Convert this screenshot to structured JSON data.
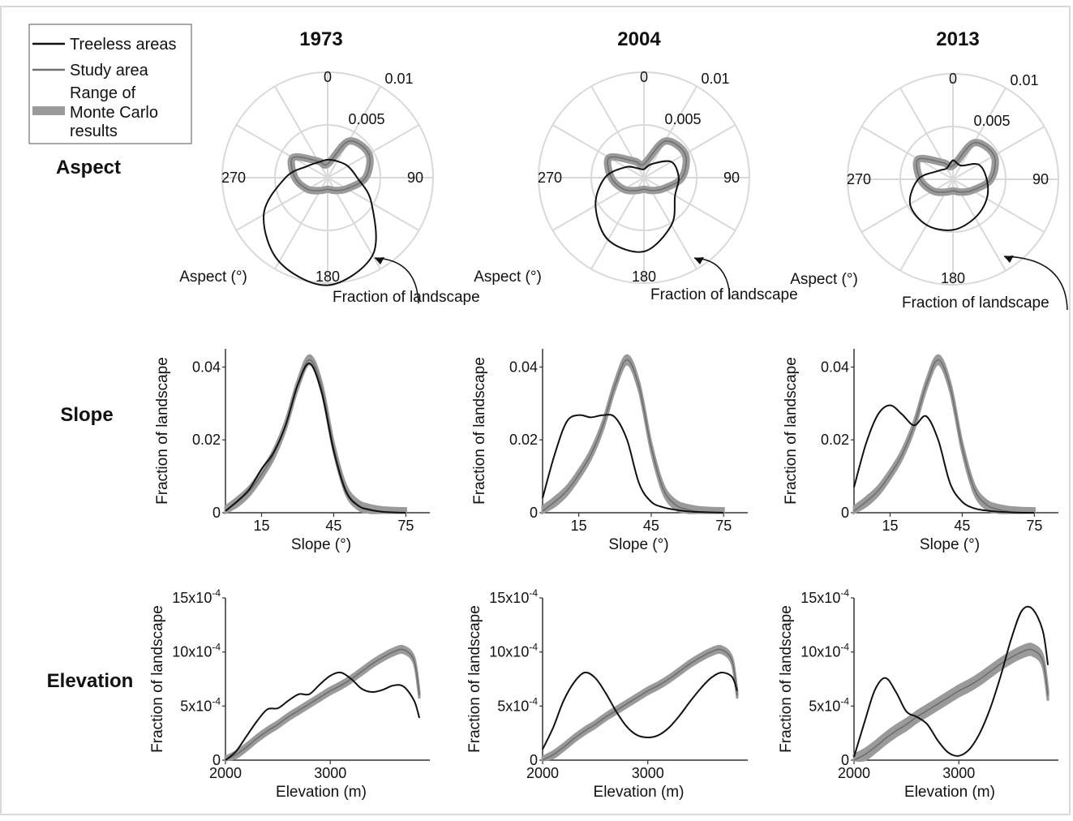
{
  "legend": {
    "items": [
      {
        "label": "Treeless areas",
        "color": "#111111",
        "kind": "line"
      },
      {
        "label": "Study area",
        "color": "#707070",
        "kind": "line"
      },
      {
        "label_lines": [
          "Range of",
          "Monte Carlo",
          "results"
        ],
        "color": "#9a9a9c",
        "kind": "band"
      }
    ]
  },
  "years": [
    "1973",
    "2004",
    "2013"
  ],
  "rows": [
    "Aspect",
    "Slope",
    "Elevation"
  ],
  "colors": {
    "treeless": "#111111",
    "study": "#6e6e6e",
    "band": "#9a9a9c",
    "grid": "#d9d9d9",
    "axis": "#333333"
  },
  "aspect": {
    "angle_ticks": [
      "0",
      "90",
      "180",
      "270"
    ],
    "radial_ticks": [
      "0.005",
      "0.01"
    ],
    "r_max": 0.01,
    "angle_label": "Aspect (°)",
    "radius_label": "Fraction of landscape"
  },
  "slope": {
    "xlabel": "Slope (°)",
    "ylabel": "Fraction of landscape",
    "xticks": [
      "15",
      "45",
      "75"
    ],
    "yticks": [
      "0",
      "0.02",
      "0.04"
    ]
  },
  "elevation": {
    "xlabel": "Elevation (m)",
    "ylabel": "Fraction of landscape",
    "xticks": [
      "2000",
      "3000"
    ],
    "ytick_base": [
      "0",
      "5x10",
      "10x10",
      "15x10"
    ],
    "ytick_exp": [
      "",
      "-4",
      "-4",
      "-4"
    ]
  },
  "chart_data": [
    {
      "type": "line",
      "id": "aspect-1973",
      "title": "1973",
      "polar": true,
      "theta_deg": [
        0,
        30,
        60,
        90,
        120,
        150,
        180,
        210,
        240,
        270,
        300,
        330
      ],
      "series": [
        {
          "name": "Treeless areas",
          "r": [
            0.0017,
            0.0018,
            0.0022,
            0.0028,
            0.0048,
            0.0085,
            0.0102,
            0.0092,
            0.007,
            0.004,
            0.0022,
            0.0017
          ]
        },
        {
          "name": "Study area",
          "r": [
            0.0013,
            0.004,
            0.0045,
            0.0036,
            0.0021,
            0.0014,
            0.0011,
            0.0014,
            0.0022,
            0.0031,
            0.0038,
            0.0018
          ]
        }
      ],
      "band_width": 0.00035
    },
    {
      "type": "line",
      "id": "aspect-2004",
      "title": "2004",
      "polar": true,
      "theta_deg": [
        0,
        30,
        60,
        90,
        120,
        150,
        180,
        210,
        240,
        270,
        300,
        330
      ],
      "series": [
        {
          "name": "Treeless areas",
          "r": [
            0.0008,
            0.0015,
            0.003,
            0.0033,
            0.0034,
            0.0052,
            0.007,
            0.0068,
            0.0053,
            0.0037,
            0.002,
            0.001
          ]
        },
        {
          "name": "Study area",
          "r": [
            0.0013,
            0.004,
            0.0045,
            0.0036,
            0.0021,
            0.0014,
            0.0011,
            0.0014,
            0.0022,
            0.0031,
            0.0038,
            0.0018
          ]
        }
      ],
      "band_width": 0.00035
    },
    {
      "type": "line",
      "id": "aspect-2013",
      "title": "2013",
      "polar": true,
      "theta_deg": [
        0,
        30,
        60,
        90,
        120,
        150,
        180,
        210,
        240,
        270,
        300,
        330
      ],
      "series": [
        {
          "name": "Treeless areas",
          "r": [
            0.0018,
            0.0015,
            0.0028,
            0.0032,
            0.0037,
            0.0042,
            0.0048,
            0.005,
            0.0047,
            0.0033,
            0.0016,
            0.0012
          ]
        },
        {
          "name": "Study area",
          "r": [
            0.0013,
            0.004,
            0.0045,
            0.0036,
            0.0021,
            0.0014,
            0.0011,
            0.0014,
            0.0022,
            0.0031,
            0.0038,
            0.0018
          ]
        }
      ],
      "band_width": 0.00035
    },
    {
      "type": "line",
      "id": "slope-1973",
      "xlim": [
        0,
        85
      ],
      "ylim": [
        0,
        0.045
      ],
      "x": [
        0,
        5,
        10,
        15,
        20,
        25,
        30,
        35,
        40,
        45,
        50,
        55,
        60,
        65,
        70,
        75
      ],
      "series": [
        {
          "name": "Treeless areas",
          "y": [
            0.0005,
            0.0032,
            0.0065,
            0.012,
            0.0165,
            0.024,
            0.035,
            0.041,
            0.033,
            0.017,
            0.006,
            0.002,
            0.0008,
            0.0003,
            0.0001,
            0.0
          ]
        },
        {
          "name": "Study area",
          "y": [
            0.0005,
            0.003,
            0.006,
            0.0105,
            0.016,
            0.024,
            0.035,
            0.042,
            0.0345,
            0.018,
            0.0065,
            0.0022,
            0.0009,
            0.0003,
            0.0001,
            0.0
          ]
        }
      ],
      "band_width": 0.0012
    },
    {
      "type": "line",
      "id": "slope-2004",
      "xlim": [
        0,
        85
      ],
      "ylim": [
        0,
        0.045
      ],
      "x": [
        0,
        5,
        10,
        15,
        20,
        25,
        30,
        35,
        40,
        45,
        50,
        55,
        60,
        65,
        70,
        75
      ],
      "series": [
        {
          "name": "Treeless areas",
          "y": [
            0.004,
            0.016,
            0.025,
            0.0268,
            0.0262,
            0.0268,
            0.0262,
            0.02,
            0.008,
            0.003,
            0.0015,
            0.0008,
            0.0004,
            0.0002,
            0.0001,
            0.0
          ]
        },
        {
          "name": "Study area",
          "y": [
            0.0005,
            0.003,
            0.006,
            0.0105,
            0.016,
            0.024,
            0.035,
            0.042,
            0.0345,
            0.018,
            0.0065,
            0.0022,
            0.0009,
            0.0003,
            0.0001,
            0.0
          ]
        }
      ],
      "band_width": 0.0012
    },
    {
      "type": "line",
      "id": "slope-2013",
      "xlim": [
        0,
        85
      ],
      "ylim": [
        0,
        0.045
      ],
      "x": [
        0,
        5,
        10,
        15,
        20,
        25,
        30,
        35,
        40,
        45,
        50,
        55,
        60,
        65,
        70,
        75
      ],
      "series": [
        {
          "name": "Treeless areas",
          "y": [
            0.007,
            0.019,
            0.027,
            0.0295,
            0.027,
            0.024,
            0.0265,
            0.02,
            0.008,
            0.003,
            0.0012,
            0.0006,
            0.0003,
            0.0001,
            0.0,
            0.0
          ]
        },
        {
          "name": "Study area",
          "y": [
            0.0005,
            0.003,
            0.006,
            0.0105,
            0.016,
            0.024,
            0.035,
            0.042,
            0.0345,
            0.018,
            0.0065,
            0.0022,
            0.0009,
            0.0003,
            0.0001,
            0.0
          ]
        }
      ],
      "band_width": 0.0012
    },
    {
      "type": "line",
      "id": "elevation-1973",
      "xlim": [
        2000,
        3950
      ],
      "ylim": [
        0,
        0.0015
      ],
      "x": [
        2000,
        2100,
        2200,
        2300,
        2400,
        2500,
        2600,
        2700,
        2800,
        2900,
        3000,
        3100,
        3200,
        3300,
        3400,
        3500,
        3600,
        3700,
        3800,
        3850
      ],
      "series": [
        {
          "name": "Treeless areas",
          "y": [
            0.0,
            8e-05,
            0.00022,
            0.00036,
            0.00047,
            0.00048,
            0.00055,
            0.00061,
            0.00061,
            0.0007,
            0.00078,
            0.00081,
            0.00075,
            0.00066,
            0.00063,
            0.00065,
            0.00069,
            0.00068,
            0.00055,
            0.00039
          ]
        },
        {
          "name": "Study area",
          "y": [
            0.0,
            5e-05,
            0.00012,
            0.0002,
            0.00027,
            0.00033,
            0.0004,
            0.00046,
            0.00052,
            0.00058,
            0.00064,
            0.00069,
            0.00075,
            0.00082,
            0.00089,
            0.00095,
            0.001,
            0.00102,
            0.00092,
            0.0006
          ]
        }
      ],
      "band_width": 3e-05
    },
    {
      "type": "line",
      "id": "elevation-2004",
      "xlim": [
        2000,
        3950
      ],
      "ylim": [
        0,
        0.0015
      ],
      "x": [
        2000,
        2100,
        2200,
        2300,
        2400,
        2500,
        2600,
        2700,
        2800,
        2900,
        3000,
        3100,
        3200,
        3300,
        3400,
        3500,
        3600,
        3700,
        3800,
        3850
      ],
      "series": [
        {
          "name": "Treeless areas",
          "y": [
            0.0001,
            0.0003,
            0.00055,
            0.00072,
            0.00081,
            0.00076,
            0.00062,
            0.00045,
            0.00031,
            0.00023,
            0.00021,
            0.00023,
            0.0003,
            0.00041,
            0.00054,
            0.00066,
            0.00076,
            0.00081,
            0.00077,
            0.00064
          ]
        },
        {
          "name": "Study area",
          "y": [
            0.0,
            5e-05,
            0.00012,
            0.0002,
            0.00027,
            0.00033,
            0.0004,
            0.00046,
            0.00052,
            0.00058,
            0.00064,
            0.00069,
            0.00075,
            0.00082,
            0.00089,
            0.00095,
            0.001,
            0.00102,
            0.00092,
            0.0006
          ]
        }
      ],
      "band_width": 3e-05
    },
    {
      "type": "line",
      "id": "elevation-2013",
      "xlim": [
        2000,
        3950
      ],
      "ylim": [
        0,
        0.0015
      ],
      "x": [
        2000,
        2100,
        2200,
        2300,
        2400,
        2500,
        2600,
        2700,
        2800,
        2900,
        3000,
        3100,
        3200,
        3300,
        3400,
        3500,
        3600,
        3700,
        3800,
        3850
      ],
      "series": [
        {
          "name": "Treeless areas",
          "y": [
            3e-05,
            0.00035,
            0.00065,
            0.00076,
            0.00063,
            0.00045,
            0.0004,
            0.00033,
            0.00018,
            7e-05,
            4e-05,
            0.0001,
            0.00025,
            0.00048,
            0.00078,
            0.00112,
            0.00138,
            0.0014,
            0.0012,
            0.00088
          ]
        },
        {
          "name": "Study area",
          "y": [
            0.0,
            5e-05,
            0.00012,
            0.0002,
            0.00027,
            0.00033,
            0.0004,
            0.00046,
            0.00052,
            0.00058,
            0.00064,
            0.00069,
            0.00075,
            0.00082,
            0.00089,
            0.00095,
            0.001,
            0.00102,
            0.00092,
            0.0006
          ]
        }
      ],
      "band_width": 5e-05
    }
  ]
}
